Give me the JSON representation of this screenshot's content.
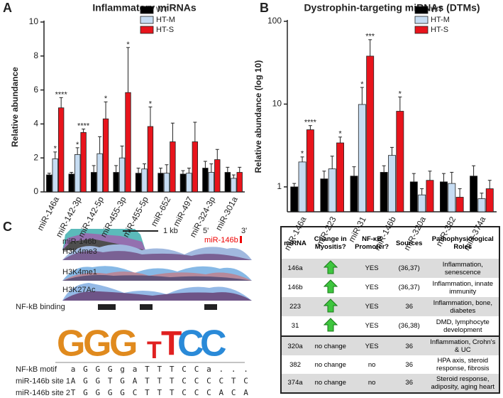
{
  "panels": [
    "A",
    "B",
    "C"
  ],
  "chart_data": [
    {
      "type": "bar",
      "title": "Inflammatory miRNAs",
      "y_label": "Relative abundance",
      "categories": [
        "miR-146a",
        "miR-142-3p",
        "miR-142-5p",
        "miR-455-3p",
        "miR-455-5p",
        "miR-652",
        "miR-497",
        "miR-324-3p",
        "miR-301a"
      ],
      "series": [
        {
          "name": "WT",
          "color": "#000000",
          "values": [
            1.0,
            1.05,
            1.15,
            1.15,
            1.1,
            1.1,
            1.05,
            1.4,
            1.15
          ],
          "error": [
            0.1,
            0.1,
            0.4,
            0.4,
            0.3,
            0.3,
            0.2,
            0.4,
            0.3
          ],
          "significance": [
            null,
            null,
            null,
            null,
            null,
            null,
            null,
            null,
            null
          ]
        },
        {
          "name": "HT-M",
          "color": "#c6dcf2",
          "values": [
            1.95,
            2.2,
            2.25,
            2.0,
            1.35,
            1.1,
            1.1,
            1.15,
            0.8
          ],
          "error": [
            0.4,
            0.4,
            1.0,
            0.7,
            0.3,
            0.5,
            0.3,
            0.5,
            0.2
          ],
          "significance": [
            "*",
            "*",
            null,
            null,
            null,
            null,
            null,
            null,
            null
          ]
        },
        {
          "name": "HT-S",
          "color": "#e8141c",
          "values": [
            4.95,
            3.5,
            4.3,
            5.85,
            3.85,
            2.95,
            2.95,
            1.9,
            1.15
          ],
          "error": [
            0.6,
            0.2,
            1.0,
            2.65,
            1.15,
            1.1,
            1.15,
            0.6,
            0.3
          ],
          "significance": [
            "****",
            "****",
            "*",
            "*",
            "*",
            null,
            null,
            null,
            null
          ]
        }
      ],
      "ylim": [
        0,
        10
      ],
      "yticks": [
        0,
        2,
        4,
        6,
        8,
        10
      ],
      "log": false
    },
    {
      "type": "bar",
      "title": "Dystrophin-targeting miRNAs (DTMs)",
      "y_label": "Relative abundance (log 10)",
      "categories": [
        "miR-146a",
        "miR-223",
        "miR-31",
        "miR-146b",
        "miR-320a",
        "miR-382",
        "miR-374a"
      ],
      "series": [
        {
          "name": "WT",
          "color": "#000000",
          "values": [
            1.0,
            1.25,
            1.35,
            1.5,
            1.15,
            1.15,
            1.35
          ],
          "error": [
            0.1,
            0.3,
            0.4,
            0.3,
            0.3,
            0.3,
            0.45
          ],
          "significance": [
            null,
            null,
            null,
            null,
            null,
            null,
            null
          ]
        },
        {
          "name": "HT-M",
          "color": "#c6dcf2",
          "values": [
            2.0,
            1.65,
            9.9,
            2.4,
            0.8,
            1.1,
            0.72
          ],
          "error": [
            0.3,
            0.7,
            6,
            0.6,
            0.15,
            0.4,
            0.12
          ],
          "significance": [
            "*",
            null,
            "*",
            null,
            null,
            null,
            null
          ]
        },
        {
          "name": "HT-S",
          "color": "#e8141c",
          "values": [
            4.9,
            3.4,
            38,
            8.2,
            1.2,
            0.75,
            0.95
          ],
          "error": [
            0.6,
            0.6,
            22,
            4,
            0.35,
            0.2,
            0.25
          ],
          "significance": [
            "****",
            "*",
            "***",
            "*",
            null,
            null,
            null
          ]
        }
      ],
      "ylim": [
        0.5,
        100
      ],
      "yticks": [
        1,
        10,
        100
      ],
      "log": true
    }
  ],
  "panel_c": {
    "scale": "1 kb",
    "five_prime": "5'",
    "three_prime": "3'",
    "gene": "miR-146b",
    "tracks": [
      "miR-146b",
      "H3K4me3",
      "H3K4me1",
      "H3K27Ac",
      "NF-kB binding"
    ],
    "logo": [
      "G",
      "G",
      "G",
      "T",
      "T",
      "C",
      "C"
    ],
    "motifs": [
      {
        "label": "NF-kB motif",
        "sequence": [
          "a",
          "G",
          "G",
          "G",
          "g",
          "a",
          "T",
          "T",
          "T",
          "C",
          "C",
          "a",
          ".",
          ".",
          "."
        ]
      },
      {
        "label": "miR-146b site 1",
        "sequence": [
          "A",
          "G",
          "G",
          "T",
          "G",
          "A",
          "T",
          "T",
          "T",
          "C",
          "C",
          "C",
          "C",
          "T",
          "C"
        ]
      },
      {
        "label": "miR-146b site 2",
        "sequence": [
          "T",
          "G",
          "G",
          "G",
          "G",
          "C",
          "T",
          "T",
          "T",
          "C",
          "C",
          "C",
          "A",
          "C",
          "A"
        ]
      }
    ]
  },
  "table": {
    "header": [
      "miRNA",
      "Change in Myositis?",
      "NF-κB Promoter?",
      "Sources",
      "Pathophysiological Roles"
    ],
    "rows": [
      [
        "146a",
        null,
        "YES",
        "(36,37)",
        "Inflammation, senescence"
      ],
      [
        "146b",
        null,
        "YES",
        "(36,37)",
        "Inflammation, innate immunity"
      ],
      [
        "223",
        null,
        "YES",
        "36",
        "Inflammation, bone, diabetes"
      ],
      [
        "31",
        null,
        "YES",
        "(36,38)",
        "DMD, lymphocyte development"
      ],
      [
        "320a",
        "no change",
        "YES",
        "36",
        "Inflammation, Crohn's & UC"
      ],
      [
        "382",
        "no change",
        "no",
        "36",
        "HPA axis, steroid response, fibrosis"
      ],
      [
        "374a",
        "no change",
        "no",
        "36",
        "Steroid response, adiposity, aging heart"
      ]
    ]
  }
}
